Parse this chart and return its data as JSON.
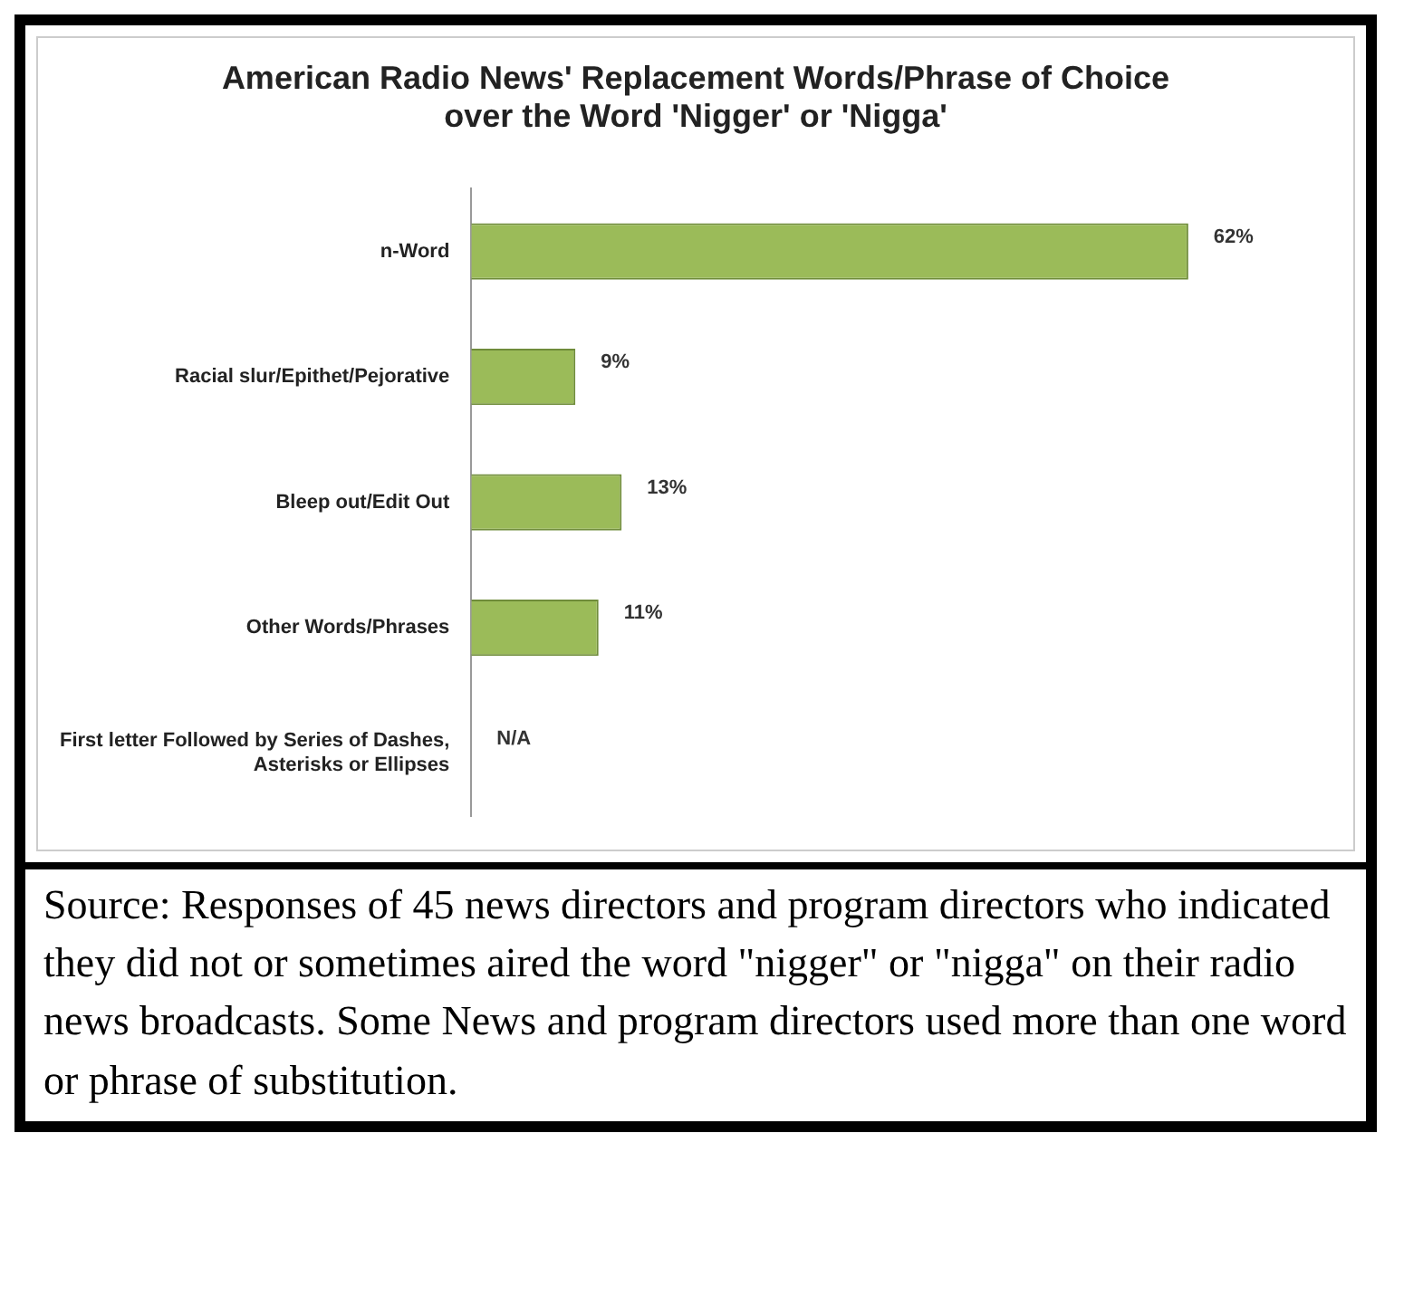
{
  "chart_data": {
    "type": "bar",
    "orientation": "horizontal",
    "title": "American Radio News' Replacement Words/Phrase of Choice over the Word 'Nigger' or 'Nigga'",
    "categories": [
      "n-Word",
      "Racial slur/Epithet/Pejorative",
      "Bleep out/Edit Out",
      "Other Words/Phrases",
      "First letter Followed by Series of Dashes, Asterisks or Ellipses"
    ],
    "values": [
      62,
      9,
      13,
      11,
      null
    ],
    "value_labels": [
      "62%",
      "9%",
      "13%",
      "11%",
      "N/A"
    ],
    "color": "#9bbb59",
    "grid": false,
    "legend": false,
    "annotations": [
      "Source: Responses of 45 news directors and program directors who indicated they did not or sometimes aired the word \"nigger\" or \"nigga\" on their radio news broadcasts. Some News and program directors used more than one word or phrase of substitution."
    ]
  }
}
